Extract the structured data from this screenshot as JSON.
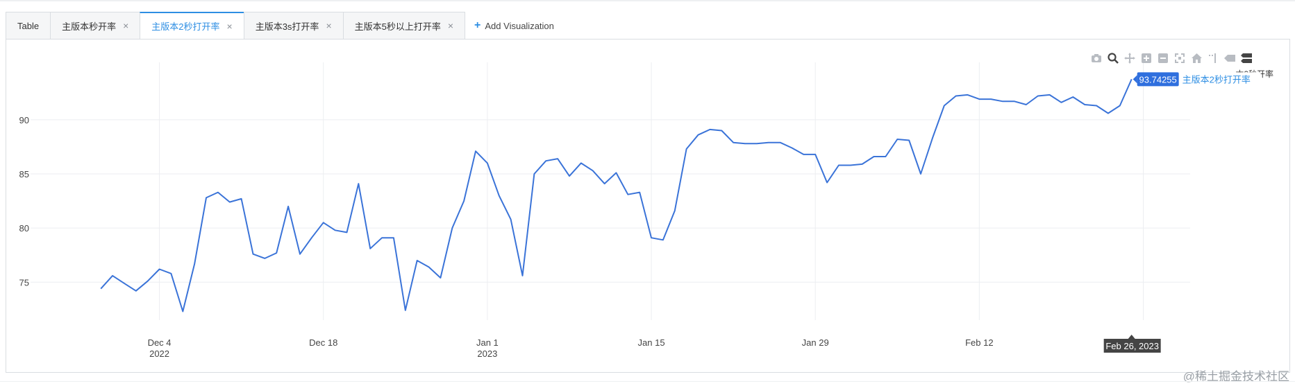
{
  "tabs": [
    {
      "label": "Table",
      "closable": false,
      "active": false
    },
    {
      "label": "主版本秒开率",
      "closable": true,
      "active": false
    },
    {
      "label": "主版本2秒打开率",
      "closable": true,
      "active": true
    },
    {
      "label": "主版本3s打开率",
      "closable": true,
      "active": false
    },
    {
      "label": "主版本5秒以上打开率",
      "closable": true,
      "active": false
    }
  ],
  "close_glyph": "×",
  "add_visualization": "Add Visualization",
  "modebar_icons": [
    "camera-icon",
    "zoom-icon",
    "pan-icon",
    "zoom-in-icon",
    "zoom-out-icon",
    "autoscale-icon",
    "home-icon",
    "spike-lines-icon",
    "hover-closest-icon",
    "hover-compare-icon"
  ],
  "legend_partial": "本2秒开率",
  "hover": {
    "value": "93.74255",
    "series": "主版本2秒打开率",
    "date": "Feb 26, 2023"
  },
  "watermark": "@稀土掘金技术社区",
  "colors": {
    "line": "#3a73d8",
    "accent": "#2d8ee3",
    "hover_bg": "#2f6fde",
    "date_bg": "#444444"
  },
  "chart_data": {
    "type": "line",
    "title": "",
    "xlabel": "",
    "ylabel": "",
    "x_start": "2022-11-29",
    "x_end": "2023-02-26",
    "xlim": [
      "2022-11-23",
      "2023-03-02"
    ],
    "ylim": [
      71.5,
      95.3
    ],
    "y_ticks": [
      75,
      80,
      85,
      90
    ],
    "x_ticks": [
      {
        "date": "2022-12-04",
        "label": "Dec 4",
        "sub": "2022"
      },
      {
        "date": "2022-12-18",
        "label": "Dec 18",
        "sub": ""
      },
      {
        "date": "2023-01-01",
        "label": "Jan 1",
        "sub": "2023"
      },
      {
        "date": "2023-01-15",
        "label": "Jan 15",
        "sub": ""
      },
      {
        "date": "2023-01-29",
        "label": "Jan 29",
        "sub": ""
      },
      {
        "date": "2023-02-12",
        "label": "Feb 12",
        "sub": ""
      },
      {
        "date": "2023-02-26",
        "label": "",
        "sub": ""
      }
    ],
    "grid": true,
    "series": [
      {
        "name": "主版本2秒打开率",
        "values": [
          74.4,
          75.6,
          74.9,
          74.2,
          75.1,
          76.2,
          75.8,
          72.3,
          76.7,
          82.8,
          83.3,
          82.4,
          82.7,
          77.6,
          77.2,
          77.7,
          82.0,
          77.6,
          79.1,
          80.5,
          79.8,
          79.6,
          84.1,
          78.1,
          79.1,
          79.1,
          72.4,
          77.0,
          76.4,
          75.4,
          80.0,
          82.5,
          87.1,
          86.0,
          83.0,
          80.8,
          75.6,
          85.0,
          86.2,
          86.4,
          84.8,
          86.0,
          85.3,
          84.1,
          85.1,
          83.1,
          83.3,
          79.1,
          78.9,
          81.6,
          87.3,
          88.6,
          89.1,
          89.0,
          87.9,
          87.8,
          87.8,
          87.9,
          87.9,
          87.4,
          86.8,
          86.8,
          84.2,
          85.8,
          85.8,
          85.9,
          86.6,
          86.6,
          88.2,
          88.1,
          85.0,
          88.3,
          91.3,
          92.2,
          92.3,
          91.9,
          91.9,
          91.7,
          91.7,
          91.4,
          92.2,
          92.3,
          91.6,
          92.1,
          91.4,
          91.3,
          90.6,
          91.3,
          93.74255
        ]
      }
    ]
  }
}
